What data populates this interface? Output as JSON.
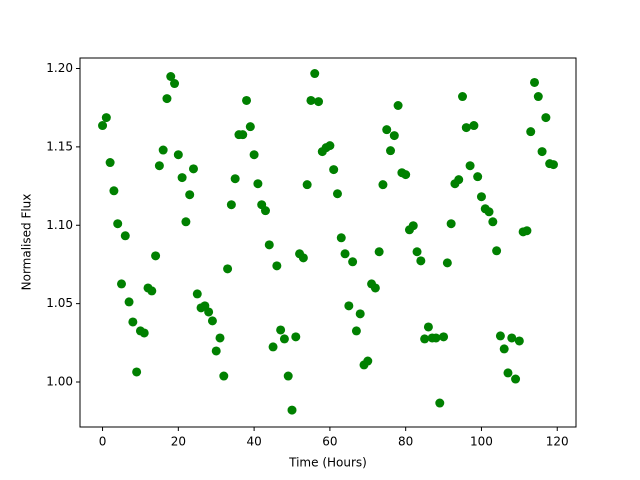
{
  "chart_data": {
    "type": "scatter",
    "xlabel": "Time (Hours)",
    "ylabel": "Normalised Flux",
    "x": [
      0,
      1,
      2,
      3,
      4,
      5,
      6,
      7,
      8,
      9,
      10,
      11,
      12,
      13,
      14,
      15,
      16,
      17,
      18,
      19,
      20,
      21,
      22,
      23,
      24,
      25,
      26,
      27,
      28,
      29,
      30,
      31,
      32,
      33,
      34,
      35,
      36,
      37,
      38,
      39,
      40,
      41,
      42,
      43,
      44,
      45,
      46,
      47,
      48,
      49,
      50,
      51,
      52,
      53,
      54,
      55,
      56,
      57,
      58,
      59,
      60,
      61,
      62,
      63,
      64,
      65,
      66,
      67,
      68,
      69,
      70,
      71,
      72,
      73,
      74,
      75,
      76,
      77,
      78,
      79,
      80,
      81,
      82,
      83,
      84,
      85,
      86,
      87,
      88,
      89,
      90,
      91,
      92,
      93,
      94,
      95,
      96,
      97,
      98,
      99,
      100,
      101,
      102,
      103,
      104,
      105,
      106,
      107,
      108,
      109,
      110,
      111,
      112,
      113,
      114,
      115,
      116,
      117,
      118,
      119
    ],
    "series": [
      {
        "color": "#008000",
        "values": [
          1.1636,
          1.1687,
          1.14,
          1.122,
          1.101,
          1.0626,
          1.0933,
          1.0511,
          1.0383,
          1.0064,
          1.0326,
          1.0313,
          1.06,
          1.0581,
          1.0805,
          1.138,
          1.148,
          1.1808,
          1.1949,
          1.1904,
          1.145,
          1.1304,
          1.1022,
          1.1195,
          1.136,
          1.0562,
          1.0473,
          1.0486,
          1.0447,
          1.039,
          1.0198,
          1.0281,
          1.0038,
          1.0722,
          1.1131,
          1.1297,
          1.1578,
          1.1578,
          1.1796,
          1.1629,
          1.145,
          1.1265,
          1.1131,
          1.1093,
          1.0875,
          1.0224,
          1.0741,
          1.0332,
          1.0275,
          1.0038,
          0.9821,
          1.0288,
          1.0818,
          1.0792,
          1.1259,
          1.1796,
          1.1968,
          1.1789,
          1.147,
          1.1495,
          1.1508,
          1.1355,
          1.1201,
          1.092,
          1.0818,
          1.0486,
          1.0767,
          1.0326,
          1.0435,
          1.0109,
          1.0134,
          1.0626,
          1.06,
          1.0831,
          1.1259,
          1.161,
          1.1476,
          1.1572,
          1.1764,
          1.1335,
          1.1323,
          1.0971,
          1.0997,
          1.0831,
          1.0773,
          1.0275,
          1.0351,
          1.0281,
          1.0281,
          0.9866,
          1.0288,
          1.076,
          1.101,
          1.1265,
          1.1291,
          1.1821,
          1.1623,
          1.138,
          1.1636,
          1.131,
          1.1182,
          1.1105,
          1.1086,
          1.1022,
          1.0837,
          1.0294,
          1.0211,
          1.0058,
          1.0281,
          1.0019,
          1.0262,
          1.0958,
          1.0965,
          1.1597,
          1.1911,
          1.1821,
          1.147,
          1.1687,
          1.1393,
          1.1387
        ]
      }
    ],
    "xlim": [
      -5.95,
      124.95
    ],
    "xticks": [
      0,
      20,
      40,
      60,
      80,
      100,
      120
    ],
    "ylim": [
      0.9713,
      1.2067
    ],
    "yticks": [
      {
        "value": 1.0,
        "label": "1.00"
      },
      {
        "value": 1.05,
        "label": "1.05"
      },
      {
        "value": 1.1,
        "label": "1.10"
      },
      {
        "value": 1.15,
        "label": "1.15"
      },
      {
        "value": 1.2,
        "label": "1.20"
      }
    ]
  }
}
